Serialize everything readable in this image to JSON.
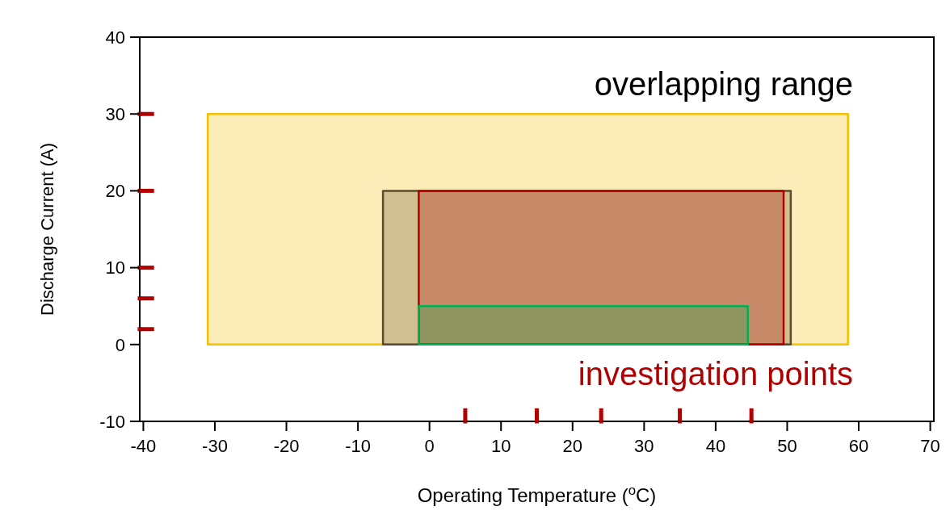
{
  "chart_data": {
    "type": "area",
    "xlabel": "Operating Temperature ($^{o}$C)",
    "ylabel": "Discharge Current (A)",
    "xlim": [
      -40.5,
      70.5
    ],
    "ylim": [
      -10,
      40
    ],
    "xticks": [
      -40,
      -30,
      -20,
      -10,
      0,
      10,
      20,
      30,
      40,
      50,
      60,
      70
    ],
    "yticks": [
      -10,
      0,
      10,
      20,
      30,
      40
    ],
    "grid": false,
    "series": [
      {
        "type": "area",
        "color": "#f5c000",
        "x": [
          -31,
          58.5
        ],
        "values": [
          30,
          30
        ]
      },
      {
        "type": "area",
        "color": "#5c4a30",
        "x": [
          -6.5,
          50.5
        ],
        "values": [
          20,
          20
        ]
      },
      {
        "type": "area",
        "color": "#b00000",
        "x": [
          -1.5,
          49.5
        ],
        "values": [
          20,
          20
        ]
      },
      {
        "type": "area",
        "color": "#00b050",
        "x": [
          -1.5,
          44.5
        ],
        "values": [
          5,
          5
        ]
      },
      {
        "type": "scatter",
        "color": "#b00000",
        "marker": "square",
        "x": [
          -40.5,
          -40.5,
          -40.5,
          -40.5,
          -40.5
        ],
        "values": [
          30,
          20,
          10,
          6,
          2
        ],
        "xerrors": [
          [
            -40.5,
            -38.5
          ],
          [
            -40.5,
            -38.5
          ],
          [
            -40.5,
            -38.5
          ],
          [
            -40.5,
            -38.5
          ],
          [
            -40.5,
            -38.5
          ]
        ]
      },
      {
        "type": "scatter",
        "color": "#b00000",
        "marker": "square",
        "x": [
          5,
          15,
          24,
          35,
          45
        ],
        "values": [
          -10,
          -10,
          -10,
          -10,
          -10
        ],
        "errors": [
          [
            -10,
            -8.3
          ],
          [
            -10,
            -8.3
          ],
          [
            -10,
            -8.3
          ],
          [
            -10,
            -8.3
          ],
          [
            -10,
            -8.3
          ]
        ]
      }
    ],
    "annotations": [
      "overlapping range",
      "investigation points"
    ]
  }
}
